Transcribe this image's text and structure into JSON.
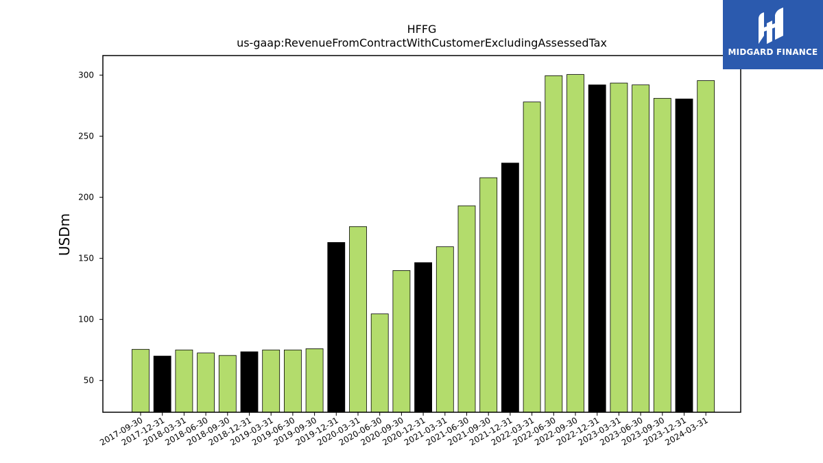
{
  "chart_data": {
    "type": "bar",
    "title": "HFFG",
    "subtitle": "us-gaap:RevenueFromContractWithCustomerExcludingAssessedTax",
    "xlabel": "",
    "ylabel": "USDm",
    "ylim": [
      24,
      316
    ],
    "yticks": [
      50,
      100,
      150,
      200,
      250,
      300
    ],
    "grid": false,
    "categories": [
      "2017-09-30",
      "2017-12-31",
      "2018-03-31",
      "2018-06-30",
      "2018-09-30",
      "2018-12-31",
      "2019-03-31",
      "2019-06-30",
      "2019-09-30",
      "2019-12-31",
      "2020-03-31",
      "2020-06-30",
      "2020-09-30",
      "2020-12-31",
      "2021-03-31",
      "2021-06-30",
      "2021-09-30",
      "2021-12-31",
      "2022-03-31",
      "2022-06-30",
      "2022-09-30",
      "2022-12-31",
      "2023-03-31",
      "2023-06-30",
      "2023-09-30",
      "2023-12-31",
      "2024-03-31"
    ],
    "values": [
      75.5,
      70.0,
      75.0,
      72.5,
      70.5,
      73.5,
      75.0,
      75.0,
      76.0,
      163.0,
      176.0,
      104.5,
      140.0,
      146.5,
      159.5,
      193.0,
      216.0,
      228.0,
      278.0,
      299.5,
      300.5,
      292.0,
      293.5,
      292.0,
      281.0,
      280.5,
      295.5
    ],
    "highlight": [
      false,
      true,
      false,
      false,
      false,
      true,
      false,
      false,
      false,
      true,
      false,
      false,
      false,
      true,
      false,
      false,
      false,
      true,
      false,
      false,
      false,
      true,
      false,
      false,
      false,
      true,
      false
    ],
    "colors": {
      "bar": "#b3dc6c",
      "highlight": "#000000",
      "edge": "#000000"
    }
  },
  "logo": {
    "text": "MIDGARD FINANCE",
    "background": "#2b5aae"
  }
}
